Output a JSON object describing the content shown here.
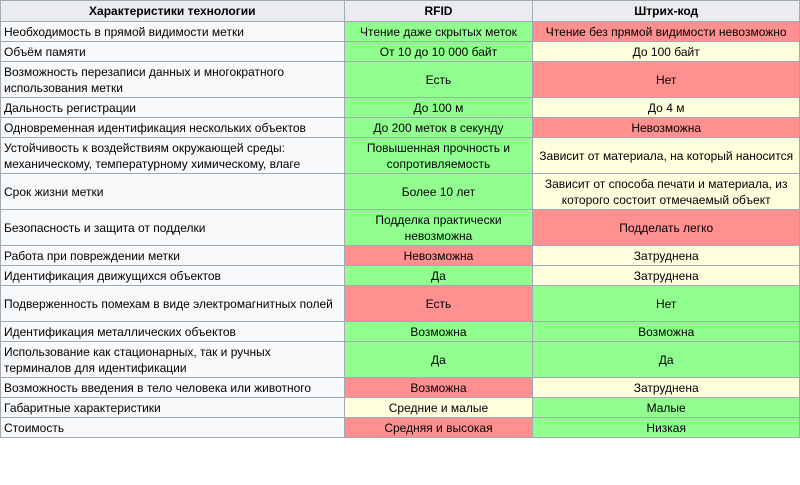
{
  "table": {
    "headers": [
      "Характеристики технологии",
      "RFID",
      "Штрих-код"
    ],
    "rows": [
      {
        "feature": "Необходимость в прямой видимости метки",
        "rfid": "Чтение даже скрытых меток",
        "rfid_status": "green",
        "barcode": "Чтение без прямой видимости невозможно",
        "barcode_status": "red"
      },
      {
        "feature": "Объём памяти",
        "rfid": "От 10 до 10 000 байт",
        "rfid_status": "green",
        "barcode": "До 100 байт",
        "barcode_status": "yellow"
      },
      {
        "feature": "Возможность перезаписи данных и многократного использования метки",
        "rfid": "Есть",
        "rfid_status": "green",
        "barcode": "Нет",
        "barcode_status": "red"
      },
      {
        "feature": "Дальность регистрации",
        "rfid": "До 100 м",
        "rfid_status": "green",
        "barcode": "До 4 м",
        "barcode_status": "yellow"
      },
      {
        "feature": "Одновременная идентификация нескольких объектов",
        "rfid": "До 200 меток в секунду",
        "rfid_status": "green",
        "barcode": "Невозможна",
        "barcode_status": "red"
      },
      {
        "feature": "Устойчивость к воздействиям окружающей среды: механическому, температурному химическому, влаге",
        "rfid": "Повышенная прочность и сопротивляемость",
        "rfid_status": "green",
        "barcode": "Зависит от материала, на который наносится",
        "barcode_status": "yellow"
      },
      {
        "feature": "Срок жизни метки",
        "rfid": "Более 10 лет",
        "rfid_status": "green",
        "barcode": "Зависит от способа печати и материала, из которого состоит отмечаемый объект",
        "barcode_status": "yellow"
      },
      {
        "feature": "Безопасность и защита от подделки",
        "rfid": "Подделка практически невозможна",
        "rfid_status": "green",
        "barcode": "Подделать легко",
        "barcode_status": "red"
      },
      {
        "feature": "Работа при повреждении метки",
        "rfid": "Невозможна",
        "rfid_status": "red",
        "barcode": "Затруднена",
        "barcode_status": "yellow"
      },
      {
        "feature": "Идентификация движущихся объектов",
        "rfid": "Да",
        "rfid_status": "green",
        "barcode": "Затруднена",
        "barcode_status": "yellow"
      },
      {
        "feature": "Подверженность помехам в виде электромагнитных полей",
        "rfid": "Есть",
        "rfid_status": "red",
        "barcode": "Нет",
        "barcode_status": "green"
      },
      {
        "feature": "Идентификация металлических объектов",
        "rfid": "Возможна",
        "rfid_status": "green",
        "barcode": "Возможна",
        "barcode_status": "green"
      },
      {
        "feature": "Использование как стационарных, так и ручных терминалов для идентификации",
        "rfid": "Да",
        "rfid_status": "green",
        "barcode": "Да",
        "barcode_status": "green"
      },
      {
        "feature": "Возможность введения в тело человека или животного",
        "rfid": "Возможна",
        "rfid_status": "red",
        "barcode": "Затруднена",
        "barcode_status": "yellow"
      },
      {
        "feature": "Габаритные характеристики",
        "rfid": "Средние и малые",
        "rfid_status": "yellow",
        "barcode": "Малые",
        "barcode_status": "green"
      },
      {
        "feature": "Стоимость",
        "rfid": "Средняя и высокая",
        "rfid_status": "red",
        "barcode": "Низкая",
        "barcode_status": "green"
      }
    ]
  },
  "colors": {
    "green": "#90ff90",
    "red": "#ff9090",
    "yellow": "#ffffdd",
    "header": "#eaecf0",
    "feature_cell": "#f8f9fa",
    "border": "#a2a9b1"
  }
}
